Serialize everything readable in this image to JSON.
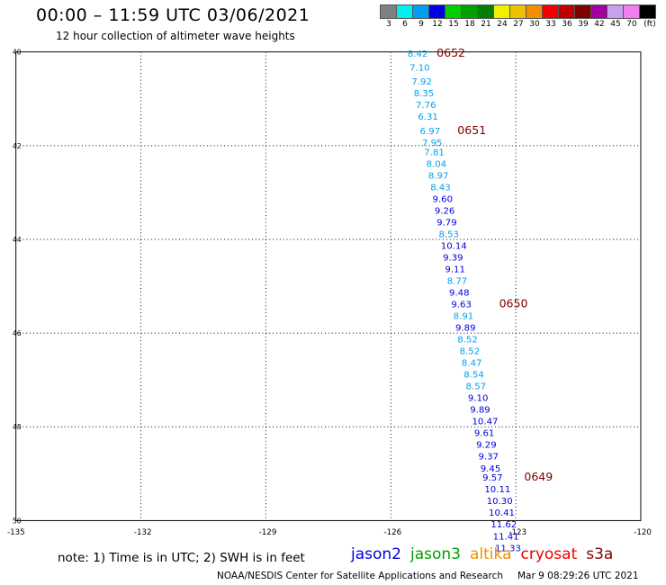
{
  "header": {
    "title": "00:00 – 11:59 UTC 03/06/2021",
    "subtitle": "12 hour collection of altimeter wave heights"
  },
  "scale": {
    "colors": [
      "#808080",
      "#00f0f0",
      "#00a0f0",
      "#0000e0",
      "#00d000",
      "#00a000",
      "#008000",
      "#f0f000",
      "#f0c000",
      "#f09000",
      "#f00000",
      "#c00000",
      "#800000",
      "#a000a0",
      "#c8a0f0",
      "#f080f0",
      "#000000"
    ],
    "labels": [
      "3",
      "6",
      "9",
      "12",
      "15",
      "18",
      "21",
      "24",
      "27",
      "30",
      "33",
      "36",
      "39",
      "42",
      "45",
      "70",
      "(ft)"
    ]
  },
  "map": {
    "lon_ticks": [
      "-135",
      "-132",
      "-129",
      "-126",
      "-123",
      "-120"
    ],
    "lat_ticks": [
      "40",
      "42",
      "44",
      "46",
      "48",
      "50"
    ],
    "lat_values": [
      40,
      42,
      44,
      46,
      48,
      50
    ],
    "lon_range": [
      -135,
      -120
    ],
    "lat_range": [
      40,
      50
    ],
    "observations": [
      {
        "value": "8.42",
        "color": "#00a0f0",
        "lat": 40.1,
        "lon": -125.6
      },
      {
        "value": "7.10",
        "color": "#00a0f0",
        "lat": 40.4,
        "lon": -125.55
      },
      {
        "value": "7.92",
        "color": "#00a0f0",
        "lat": 40.7,
        "lon": -125.5
      },
      {
        "value": "8.35",
        "color": "#00a0f0",
        "lat": 40.95,
        "lon": -125.45
      },
      {
        "value": "7.76",
        "color": "#00a0f0",
        "lat": 41.2,
        "lon": -125.4
      },
      {
        "value": "6.31",
        "color": "#00a0f0",
        "lat": 41.45,
        "lon": -125.35
      },
      {
        "value": "6.97",
        "color": "#00a0f0",
        "lat": 41.75,
        "lon": -125.3
      },
      {
        "value": "7.95",
        "color": "#00a0f0",
        "lat": 42.0,
        "lon": -125.25
      },
      {
        "value": "7.81",
        "color": "#00a0f0",
        "lat": 42.2,
        "lon": -125.2
      },
      {
        "value": "8.04",
        "color": "#00a0f0",
        "lat": 42.45,
        "lon": -125.15
      },
      {
        "value": "8.97",
        "color": "#00a0f0",
        "lat": 42.7,
        "lon": -125.1
      },
      {
        "value": "8.43",
        "color": "#00a0f0",
        "lat": 42.95,
        "lon": -125.05
      },
      {
        "value": "9.60",
        "color": "#0000e0",
        "lat": 43.2,
        "lon": -125.0
      },
      {
        "value": "9.26",
        "color": "#0000e0",
        "lat": 43.45,
        "lon": -124.95
      },
      {
        "value": "9.79",
        "color": "#0000e0",
        "lat": 43.7,
        "lon": -124.9
      },
      {
        "value": "8.53",
        "color": "#00a0f0",
        "lat": 43.95,
        "lon": -124.85
      },
      {
        "value": "10.14",
        "color": "#0000e0",
        "lat": 44.2,
        "lon": -124.8
      },
      {
        "value": "9.39",
        "color": "#0000e0",
        "lat": 44.45,
        "lon": -124.75
      },
      {
        "value": "9.11",
        "color": "#0000e0",
        "lat": 44.7,
        "lon": -124.7
      },
      {
        "value": "8.77",
        "color": "#00a0f0",
        "lat": 44.95,
        "lon": -124.65
      },
      {
        "value": "9.48",
        "color": "#0000e0",
        "lat": 45.2,
        "lon": -124.6
      },
      {
        "value": "9.63",
        "color": "#0000e0",
        "lat": 45.45,
        "lon": -124.55
      },
      {
        "value": "8.91",
        "color": "#00a0f0",
        "lat": 45.7,
        "lon": -124.5
      },
      {
        "value": "9.89",
        "color": "#0000e0",
        "lat": 45.95,
        "lon": -124.45
      },
      {
        "value": "8.52",
        "color": "#00a0f0",
        "lat": 46.2,
        "lon": -124.4
      },
      {
        "value": "8.52",
        "color": "#00a0f0",
        "lat": 46.45,
        "lon": -124.35
      },
      {
        "value": "8.47",
        "color": "#00a0f0",
        "lat": 46.7,
        "lon": -124.3
      },
      {
        "value": "8.54",
        "color": "#00a0f0",
        "lat": 46.95,
        "lon": -124.25
      },
      {
        "value": "8.57",
        "color": "#00a0f0",
        "lat": 47.2,
        "lon": -124.2
      },
      {
        "value": "9.10",
        "color": "#0000e0",
        "lat": 47.45,
        "lon": -124.15
      },
      {
        "value": "9.89",
        "color": "#0000e0",
        "lat": 47.7,
        "lon": -124.1
      },
      {
        "value": "10.47",
        "color": "#0000e0",
        "lat": 47.95,
        "lon": -124.05
      },
      {
        "value": "9.61",
        "color": "#0000e0",
        "lat": 48.2,
        "lon": -124.0
      },
      {
        "value": "9.29",
        "color": "#0000e0",
        "lat": 48.45,
        "lon": -123.95
      },
      {
        "value": "9.37",
        "color": "#0000e0",
        "lat": 48.7,
        "lon": -123.9
      },
      {
        "value": "9.45",
        "color": "#0000e0",
        "lat": 48.95,
        "lon": -123.85
      },
      {
        "value": "9.57",
        "color": "#0000e0",
        "lat": 49.15,
        "lon": -123.8
      },
      {
        "value": "10.11",
        "color": "#0000e0",
        "lat": 49.4,
        "lon": -123.75
      },
      {
        "value": "10.30",
        "color": "#0000e0",
        "lat": 49.65,
        "lon": -123.7
      },
      {
        "value": "10.41",
        "color": "#0000e0",
        "lat": 49.9,
        "lon": -123.65
      },
      {
        "value": "11.62",
        "color": "#0000e0",
        "lat": 50.15,
        "lon": -123.6
      },
      {
        "value": "11.41",
        "color": "#0000e0",
        "lat": 50.4,
        "lon": -123.55
      },
      {
        "value": "11.33",
        "color": "#0000e0",
        "lat": 50.65,
        "lon": -123.5
      }
    ],
    "time_labels": [
      {
        "text": "0652",
        "lat": 40.1,
        "lon": -124.9
      },
      {
        "text": "0651",
        "lat": 41.75,
        "lon": -124.4
      },
      {
        "text": "0650",
        "lat": 45.45,
        "lon": -123.4
      },
      {
        "text": "0649",
        "lat": 49.15,
        "lon": -122.8
      }
    ]
  },
  "footer": {
    "note": "note: 1) Time is in UTC; 2) SWH is in feet",
    "satellites": [
      {
        "name": "jason2",
        "color": "#0000e0"
      },
      {
        "name": "jason3",
        "color": "#00a000"
      },
      {
        "name": "altika",
        "color": "#f09000"
      },
      {
        "name": "cryosat",
        "color": "#f00000"
      },
      {
        "name": "s3a",
        "color": "#800000"
      }
    ],
    "credit": "NOAA/NESDIS Center for Satellite Applications and Research",
    "timestamp": "Mar 9 08:29:26 UTC 2021"
  }
}
